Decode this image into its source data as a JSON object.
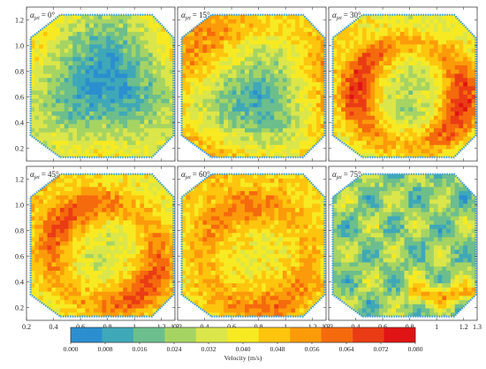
{
  "chart_data": {
    "type": "heatmap",
    "layout": {
      "rows": 2,
      "cols": 3
    },
    "x_ticks": [
      0.2,
      0.4,
      0.6,
      0.8,
      1,
      1.2,
      1.3
    ],
    "x_tick_labels": [
      "0.2",
      "0.4",
      "0.6",
      "0.8",
      "1",
      "1.2",
      "1.3"
    ],
    "y_ticks": [
      0.2,
      0.4,
      0.6,
      0.8,
      1.0,
      1.2
    ],
    "y_tick_labels": [
      "0.2",
      "0.4",
      "0.6",
      "0.8",
      "1.0",
      "1.2"
    ],
    "xlim": [
      0.2,
      1.3
    ],
    "ylim": [
      0.1,
      1.3
    ],
    "grid": false,
    "domain_shape": "octagon",
    "panels": [
      {
        "label_prefix": "α",
        "label_sub": "jet",
        "label_value": "= 0°",
        "pattern": "center-low",
        "center": [
          0.78,
          0.72
        ],
        "v_center": 0.004,
        "v_edge": 0.045
      },
      {
        "label_prefix": "α",
        "label_sub": "jet",
        "label_value": "= 15°",
        "pattern": "center-low",
        "center": [
          0.78,
          0.58
        ],
        "v_center": 0.012,
        "v_edge": 0.062
      },
      {
        "label_prefix": "α",
        "label_sub": "jet",
        "label_value": "= 30°",
        "pattern": "ring",
        "center": [
          0.8,
          0.62
        ],
        "v_center": 0.02,
        "v_edge": 0.078
      },
      {
        "label_prefix": "α",
        "label_sub": "jet",
        "label_value": "= 45°",
        "pattern": "ring",
        "center": [
          0.78,
          0.62
        ],
        "v_center": 0.028,
        "v_edge": 0.074
      },
      {
        "label_prefix": "α",
        "label_sub": "jet",
        "label_value": "= 60°",
        "pattern": "ring",
        "center": [
          0.78,
          0.6
        ],
        "v_center": 0.036,
        "v_edge": 0.066
      },
      {
        "label_prefix": "α",
        "label_sub": "jet",
        "label_value": "= 75°",
        "pattern": "speckle-low",
        "center": [
          0.78,
          0.62
        ],
        "v_center": 0.012,
        "v_edge": 0.04
      }
    ],
    "colorbar": {
      "label": "Velocity (m/s)",
      "ticks": [
        0.0,
        0.008,
        0.016,
        0.024,
        0.032,
        0.04,
        0.048,
        0.056,
        0.064,
        0.072,
        0.08
      ],
      "tick_labels": [
        "0.000",
        "0.008",
        "0.016",
        "0.024",
        "0.032",
        "0.040",
        "0.048",
        "0.056",
        "0.064",
        "0.072",
        "0.080"
      ],
      "colors": [
        "#2b8fcf",
        "#3fa8b8",
        "#6cbe8c",
        "#a6d463",
        "#dbe64a",
        "#f7ea22",
        "#fdc50e",
        "#fb9b0a",
        "#f56a0d",
        "#ea3c14",
        "#e01414"
      ]
    }
  }
}
